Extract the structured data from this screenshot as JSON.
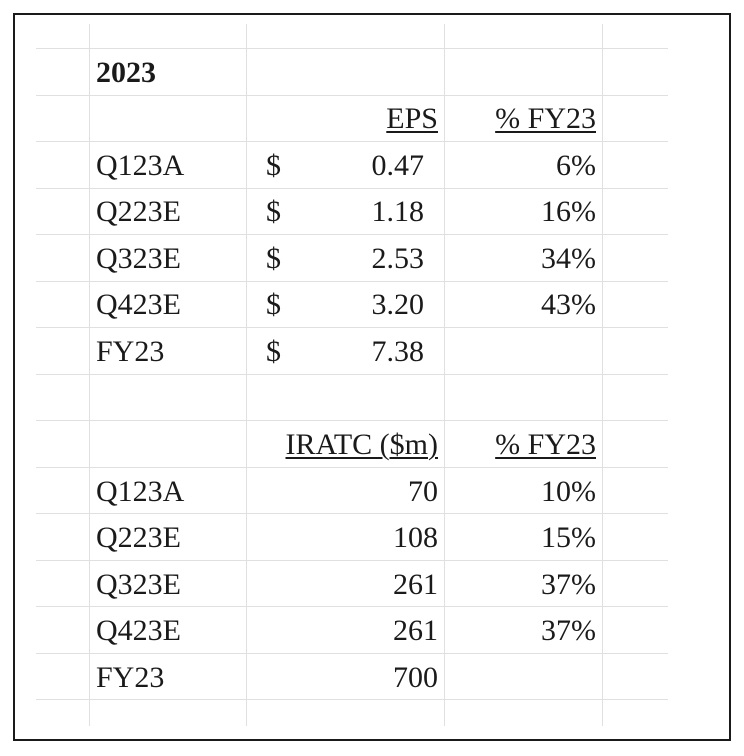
{
  "title": "2023",
  "eps_table": {
    "headers": {
      "eps": "EPS",
      "pct": "% FY23"
    },
    "rows": [
      {
        "label": "Q123A",
        "currency": "$",
        "value": "0.47",
        "pct": "6%"
      },
      {
        "label": "Q223E",
        "currency": "$",
        "value": "1.18",
        "pct": "16%"
      },
      {
        "label": "Q323E",
        "currency": "$",
        "value": "2.53",
        "pct": "34%"
      },
      {
        "label": "Q423E",
        "currency": "$",
        "value": "3.20",
        "pct": "43%"
      },
      {
        "label": "FY23",
        "currency": "$",
        "value": "7.38",
        "pct": ""
      }
    ]
  },
  "iratc_table": {
    "headers": {
      "iratc": "IRATC ($m)",
      "pct": "% FY23"
    },
    "rows": [
      {
        "label": "Q123A",
        "value": "70",
        "pct": "10%"
      },
      {
        "label": "Q223E",
        "value": "108",
        "pct": "15%"
      },
      {
        "label": "Q323E",
        "value": "261",
        "pct": "37%"
      },
      {
        "label": "Q423E",
        "value": "261",
        "pct": "37%"
      },
      {
        "label": "FY23",
        "value": "700",
        "pct": ""
      }
    ]
  }
}
